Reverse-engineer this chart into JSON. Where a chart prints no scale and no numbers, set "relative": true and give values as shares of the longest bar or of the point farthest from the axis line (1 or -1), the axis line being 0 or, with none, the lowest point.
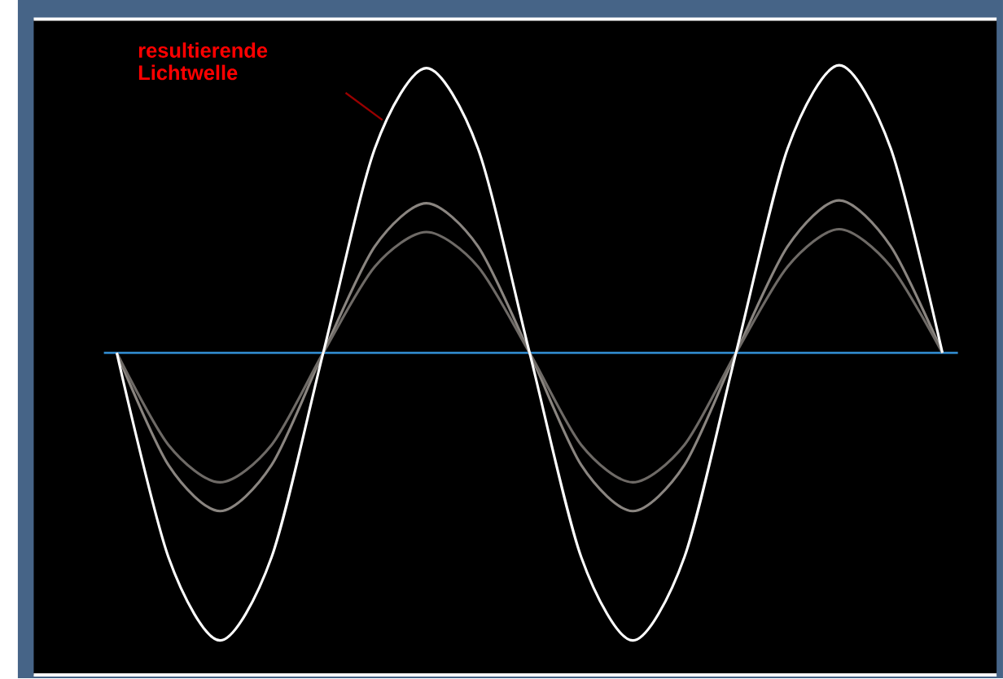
{
  "chart_data": {
    "type": "line",
    "relative": true,
    "categories": [
      null,
      null,
      null,
      null,
      null,
      null,
      null,
      null,
      null,
      null,
      null,
      null,
      null,
      null,
      null,
      null,
      null
    ],
    "series": [
      {
        "color": "#8a8580",
        "values": [
          0,
          -0.39,
          -0.55,
          -0.39,
          0,
          0.37,
          0.52,
          0.37,
          0,
          -0.39,
          -0.55,
          -0.39,
          0,
          0.37,
          0.53,
          0.37,
          0
        ]
      },
      {
        "color": "#6e6a66",
        "values": [
          0,
          -0.32,
          -0.45,
          -0.32,
          0,
          0.3,
          0.42,
          0.3,
          0,
          -0.32,
          -0.45,
          -0.32,
          0,
          0.3,
          0.43,
          0.3,
          0
        ]
      },
      {
        "color": "#ffffff",
        "values": [
          0,
          -0.71,
          -1,
          -0.71,
          0,
          0.71,
          0.99,
          0.71,
          0,
          -0.71,
          -1,
          -0.71,
          0,
          0.71,
          1,
          0.71,
          0
        ]
      }
    ],
    "ref_lines": [
      {
        "axis": "y",
        "value": 0,
        "color": "#2f86c8"
      }
    ],
    "annotations": [
      "resultierende Lichtwelle"
    ]
  }
}
